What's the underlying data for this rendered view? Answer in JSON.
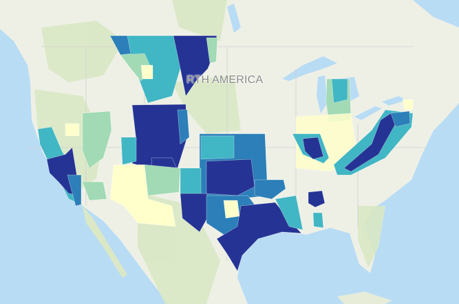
{
  "map": {
    "place_label": "RTH AMERICA",
    "colors": {
      "ocean": "#b9dcf5",
      "land": "#eef0e6",
      "vegetation": "#d9e8c4",
      "class_1": "#ffffcc",
      "class_2": "#a1dab4",
      "class_3": "#41b6c4",
      "class_4": "#2c7fb8",
      "class_5": "#253494"
    }
  }
}
